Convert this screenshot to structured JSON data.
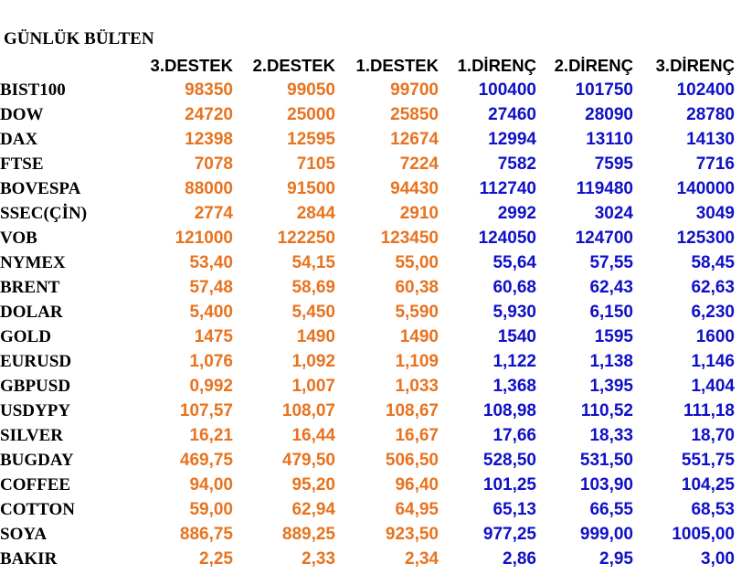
{
  "title": "GÜNLÜK BÜLTEN",
  "colors": {
    "support": "#e8731f",
    "resistance": "#1010c8",
    "text": "#000000"
  },
  "columns": [
    "3.DESTEK",
    "2.DESTEK",
    "1.DESTEK",
    "1.DİRENÇ",
    "2.DİRENÇ",
    "3.DİRENÇ"
  ],
  "rows": [
    {
      "name": "BIST100",
      "values": [
        "98350",
        "99050",
        "99700",
        "100400",
        "101750",
        "102400"
      ]
    },
    {
      "name": "DOW",
      "values": [
        "24720",
        "25000",
        "25850",
        "27460",
        "28090",
        "28780"
      ]
    },
    {
      "name": "DAX",
      "values": [
        "12398",
        "12595",
        "12674",
        "12994",
        "13110",
        "14130"
      ]
    },
    {
      "name": "FTSE",
      "values": [
        "7078",
        "7105",
        "7224",
        "7582",
        "7595",
        "7716"
      ]
    },
    {
      "name": "BOVESPA",
      "values": [
        "88000",
        "91500",
        "94430",
        "112740",
        "119480",
        "140000"
      ]
    },
    {
      "name": "SSEC(ÇİN)",
      "values": [
        "2774",
        "2844",
        "2910",
        "2992",
        "3024",
        "3049"
      ]
    },
    {
      "name": "VOB",
      "values": [
        "121000",
        "122250",
        "123450",
        "124050",
        "124700",
        "125300"
      ]
    },
    {
      "name": "NYMEX",
      "values": [
        "53,40",
        "54,15",
        "55,00",
        "55,64",
        "57,55",
        "58,45"
      ]
    },
    {
      "name": "BRENT",
      "values": [
        "57,48",
        "58,69",
        "60,38",
        "60,68",
        "62,43",
        "62,63"
      ]
    },
    {
      "name": "DOLAR",
      "values": [
        "5,400",
        "5,450",
        "5,590",
        "5,930",
        "6,150",
        "6,230"
      ]
    },
    {
      "name": "GOLD",
      "values": [
        "1475",
        "1490",
        "1490",
        "1540",
        "1595",
        "1600"
      ]
    },
    {
      "name": "EURUSD",
      "values": [
        "1,076",
        "1,092",
        "1,109",
        "1,122",
        "1,138",
        "1,146"
      ]
    },
    {
      "name": "GBPUSD",
      "values": [
        "0,992",
        "1,007",
        "1,033",
        "1,368",
        "1,395",
        "1,404"
      ]
    },
    {
      "name": "USDYPY",
      "values": [
        "107,57",
        "108,07",
        "108,67",
        "108,98",
        "110,52",
        "111,18"
      ]
    },
    {
      "name": "SILVER",
      "values": [
        "16,21",
        "16,44",
        "16,67",
        "17,66",
        "18,33",
        "18,70"
      ]
    },
    {
      "name": "BUGDAY",
      "values": [
        "469,75",
        "479,50",
        "506,50",
        "528,50",
        "531,50",
        "551,75"
      ]
    },
    {
      "name": "COFFEE",
      "values": [
        "94,00",
        "95,20",
        "96,40",
        "101,25",
        "103,90",
        "104,25"
      ]
    },
    {
      "name": "COTTON",
      "values": [
        "59,00",
        "62,94",
        "64,95",
        "65,13",
        "66,55",
        "68,53"
      ]
    },
    {
      "name": "SOYA",
      "values": [
        "886,75",
        "889,25",
        "923,50",
        "977,25",
        "999,00",
        "1005,00"
      ]
    },
    {
      "name": "BAKIR",
      "values": [
        "2,25",
        "2,33",
        "2,34",
        "2,86",
        "2,95",
        "3,00"
      ]
    }
  ]
}
